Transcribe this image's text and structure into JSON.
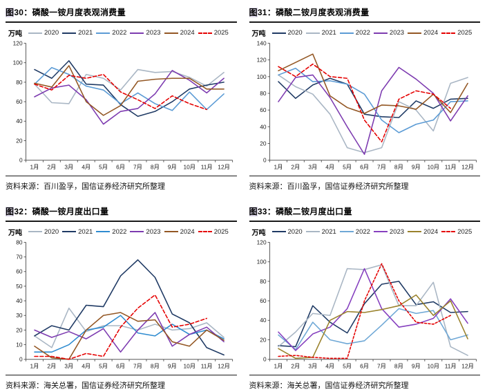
{
  "page": {
    "background": "#ffffff"
  },
  "chart_data": [
    {
      "fig_char": "图",
      "fig_label": "30：",
      "title": "磷酸一铵月度表观消费量",
      "source": "资料来源：百川盈孚，国信证券经济研究所整理",
      "type": "line",
      "unit": "万吨",
      "grid": false,
      "legend_position": "top",
      "categories": [
        "1月",
        "2月",
        "3月",
        "4月",
        "5月",
        "6月",
        "7月",
        "8月",
        "9月",
        "10月",
        "11月",
        "12月"
      ],
      "ylim": [
        0,
        120
      ],
      "ytick_step": 20,
      "series": [
        {
          "name": "2020",
          "color": "#a9b6c4",
          "dash": "",
          "values": [
            78,
            59,
            58,
            88,
            84,
            72,
            93,
            90,
            91,
            85,
            76,
            90
          ]
        },
        {
          "name": "2021",
          "color": "#1f3a64",
          "dash": "",
          "values": [
            93,
            84,
            102,
            78,
            77,
            57,
            45,
            50,
            60,
            73,
            77,
            80
          ]
        },
        {
          "name": "2022",
          "color": "#5b9bd5",
          "dash": "",
          "values": [
            78,
            95,
            88,
            76,
            72,
            58,
            69,
            58,
            51,
            70,
            52,
            68
          ]
        },
        {
          "name": "2023",
          "color": "#7d3bb0",
          "dash": "",
          "values": [
            65,
            74,
            77,
            62,
            37,
            50,
            53,
            68,
            92,
            82,
            69,
            84
          ]
        },
        {
          "name": "2024",
          "color": "#935724",
          "dash": "",
          "values": [
            79,
            75,
            97,
            60,
            46,
            56,
            81,
            83,
            84,
            84,
            73,
            73
          ]
        },
        {
          "name": "2025",
          "color": "#e50000",
          "dash": "5,3",
          "values": [
            78,
            72,
            87,
            84,
            88,
            70,
            62,
            53,
            66,
            58,
            52,
            null
          ]
        }
      ]
    },
    {
      "fig_char": "图",
      "fig_label": "31：",
      "title": "磷酸二铵月度表观消费量",
      "source": "资料来源：百川盈孚，国信证券经济研究所整理",
      "type": "line",
      "unit": "万吨",
      "grid": false,
      "legend_position": "top",
      "categories": [
        "1月",
        "2月",
        "3月",
        "4月",
        "5月",
        "6月",
        "7月",
        "8月",
        "9月",
        "10月",
        "11月",
        "12月"
      ],
      "ylim": [
        0,
        140
      ],
      "ytick_step": 20,
      "series": [
        {
          "name": "2020",
          "color": "#1f3a64",
          "dash": "",
          "values": [
            94,
            74,
            90,
            98,
            91,
            55,
            52,
            51,
            71,
            62,
            73,
            74
          ]
        },
        {
          "name": "2021",
          "color": "#a9b6c4",
          "dash": "",
          "values": [
            102,
            88,
            79,
            55,
            15,
            9,
            15,
            70,
            60,
            35,
            92,
            99
          ]
        },
        {
          "name": "2022",
          "color": "#5b9bd5",
          "dash": "",
          "values": [
            102,
            110,
            94,
            95,
            91,
            79,
            48,
            33,
            43,
            48,
            70,
            71
          ]
        },
        {
          "name": "2023",
          "color": "#7d3bb0",
          "dash": "",
          "values": [
            70,
            99,
            102,
            75,
            40,
            7,
            83,
            111,
            97,
            80,
            47,
            77
          ]
        },
        {
          "name": "2024",
          "color": "#935724",
          "dash": "",
          "values": [
            107,
            117,
            127,
            77,
            63,
            56,
            66,
            65,
            61,
            79,
            57,
            92
          ]
        },
        {
          "name": "2025",
          "color": "#e50000",
          "dash": "5,3",
          "values": [
            112,
            100,
            115,
            100,
            98,
            48,
            22,
            73,
            83,
            79,
            62,
            null
          ]
        }
      ]
    },
    {
      "fig_char": "图",
      "fig_label": "32：",
      "title": "磷酸一铵月度出口量",
      "source": "资料来源：海关总署，国信证券经济研究所整理",
      "type": "line",
      "unit": "万吨",
      "grid": false,
      "legend_position": "top",
      "categories": [
        "1月",
        "2月",
        "3月",
        "4月",
        "5月",
        "6月",
        "7月",
        "8月",
        "9月",
        "10月",
        "11月",
        "12月"
      ],
      "ylim": [
        0,
        80
      ],
      "ytick_step": 10,
      "series": [
        {
          "name": "2020",
          "color": "#a9b6c4",
          "dash": "",
          "values": [
            16,
            8,
            35,
            19,
            23,
            23,
            20,
            24,
            20,
            21,
            25,
            15
          ]
        },
        {
          "name": "2021",
          "color": "#1f3a64",
          "dash": "",
          "values": [
            16,
            23,
            20,
            37,
            36,
            57,
            68,
            56,
            31,
            25,
            8,
            3
          ]
        },
        {
          "name": "2022",
          "color": "#2e8bd0",
          "dash": "",
          "values": [
            5,
            5,
            10,
            20,
            22,
            30,
            18,
            16,
            24,
            17,
            20,
            14
          ]
        },
        {
          "name": "2023",
          "color": "#7d3bb0",
          "dash": "",
          "values": [
            20,
            15,
            19,
            14,
            21,
            5,
            20,
            32,
            9,
            17,
            22,
            12
          ]
        },
        {
          "name": "2024",
          "color": "#935724",
          "dash": "",
          "values": [
            9,
            1,
            0,
            20,
            30,
            32,
            26,
            27,
            12,
            9,
            20,
            13
          ]
        },
        {
          "name": "2025",
          "color": "#e50000",
          "dash": "5,3",
          "values": [
            2,
            2,
            0,
            4,
            2,
            22,
            35,
            44,
            22,
            24,
            28,
            null
          ]
        }
      ]
    },
    {
      "fig_char": "图",
      "fig_label": "33：",
      "title": "磷酸二铵月度出口量",
      "source": "资料来源：海关总署，国信证券经济研究所整理",
      "type": "line",
      "unit": "万吨",
      "grid": false,
      "legend_position": "top",
      "categories": [
        "1月",
        "2月",
        "3月",
        "4月",
        "5月",
        "6月",
        "7月",
        "8月",
        "9月",
        "10月",
        "11月",
        "12月"
      ],
      "ylim": [
        0,
        120
      ],
      "ytick_step": 20,
      "series": [
        {
          "name": "2020",
          "color": "#1f3a64",
          "dash": "",
          "values": [
            14,
            13,
            55,
            38,
            27,
            57,
            77,
            80,
            56,
            59,
            48,
            49
          ]
        },
        {
          "name": "2021",
          "color": "#a9b6c4",
          "dash": "",
          "values": [
            13,
            28,
            47,
            45,
            93,
            92,
            97,
            55,
            55,
            79,
            13,
            4
          ]
        },
        {
          "name": "2022",
          "color": "#6fa8d6",
          "dash": "",
          "values": [
            25,
            10,
            38,
            20,
            16,
            19,
            35,
            52,
            47,
            50,
            20,
            25
          ]
        },
        {
          "name": "2023",
          "color": "#8640bf",
          "dash": "",
          "values": [
            28,
            9,
            26,
            33,
            52,
            93,
            52,
            33,
            36,
            42,
            62,
            37
          ]
        },
        {
          "name": "2024",
          "color": "#9a822c",
          "dash": "",
          "values": [
            11,
            1,
            2,
            40,
            49,
            48,
            51,
            55,
            66,
            45,
            60,
            21
          ]
        },
        {
          "name": "2025",
          "color": "#e50000",
          "dash": "3,2.5",
          "values": [
            3,
            4,
            2,
            1,
            1,
            60,
            98,
            60,
            38,
            36,
            45,
            null
          ]
        }
      ]
    }
  ]
}
